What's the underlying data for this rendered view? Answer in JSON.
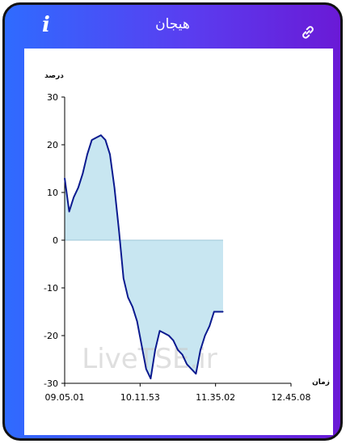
{
  "header": {
    "title": "هیجان",
    "info_icon": "info-icon",
    "link_icon": "link-icon"
  },
  "colors": {
    "gradient_start": "#2f6bff",
    "gradient_end": "#6a1ad6",
    "line": "#0b1a8f",
    "fill": "#c8e6f1"
  },
  "chart_data": {
    "type": "area",
    "ylabel": "درصد",
    "xlabel": "زمان",
    "ylim": [
      -30,
      30
    ],
    "yticks": [
      30,
      20,
      10,
      0,
      -10,
      -20,
      -30
    ],
    "xticks": [
      "09.05.01",
      "10.11.53",
      "11.35.02",
      "12.45.08"
    ],
    "watermark": "LiveTSE.ir",
    "series": [
      {
        "x": [
          0,
          1,
          2,
          3,
          4,
          5,
          6,
          7,
          8,
          9,
          10,
          11,
          12,
          13,
          14,
          15,
          16,
          17,
          18,
          19,
          20,
          21,
          22,
          23,
          24,
          25,
          26,
          27,
          28,
          29,
          30,
          31,
          32,
          33,
          34,
          35,
          36,
          37,
          38,
          39,
          40,
          41,
          42,
          43,
          44,
          45,
          46,
          47,
          48,
          49,
          50
        ],
        "values": [
          13,
          6,
          9,
          11,
          14,
          18,
          21,
          21.5,
          22,
          21,
          18,
          11,
          2,
          -8,
          -12,
          -14,
          -17,
          -22,
          -27,
          -29,
          -23,
          -19,
          -19.5,
          -20,
          -21,
          -23,
          -24,
          -26,
          -27,
          -28,
          -23,
          -20,
          -18,
          -15,
          -15,
          -15,
          null,
          null,
          null,
          null,
          null,
          null,
          null,
          null,
          null,
          null,
          null,
          null,
          null,
          null,
          null
        ]
      }
    ]
  }
}
